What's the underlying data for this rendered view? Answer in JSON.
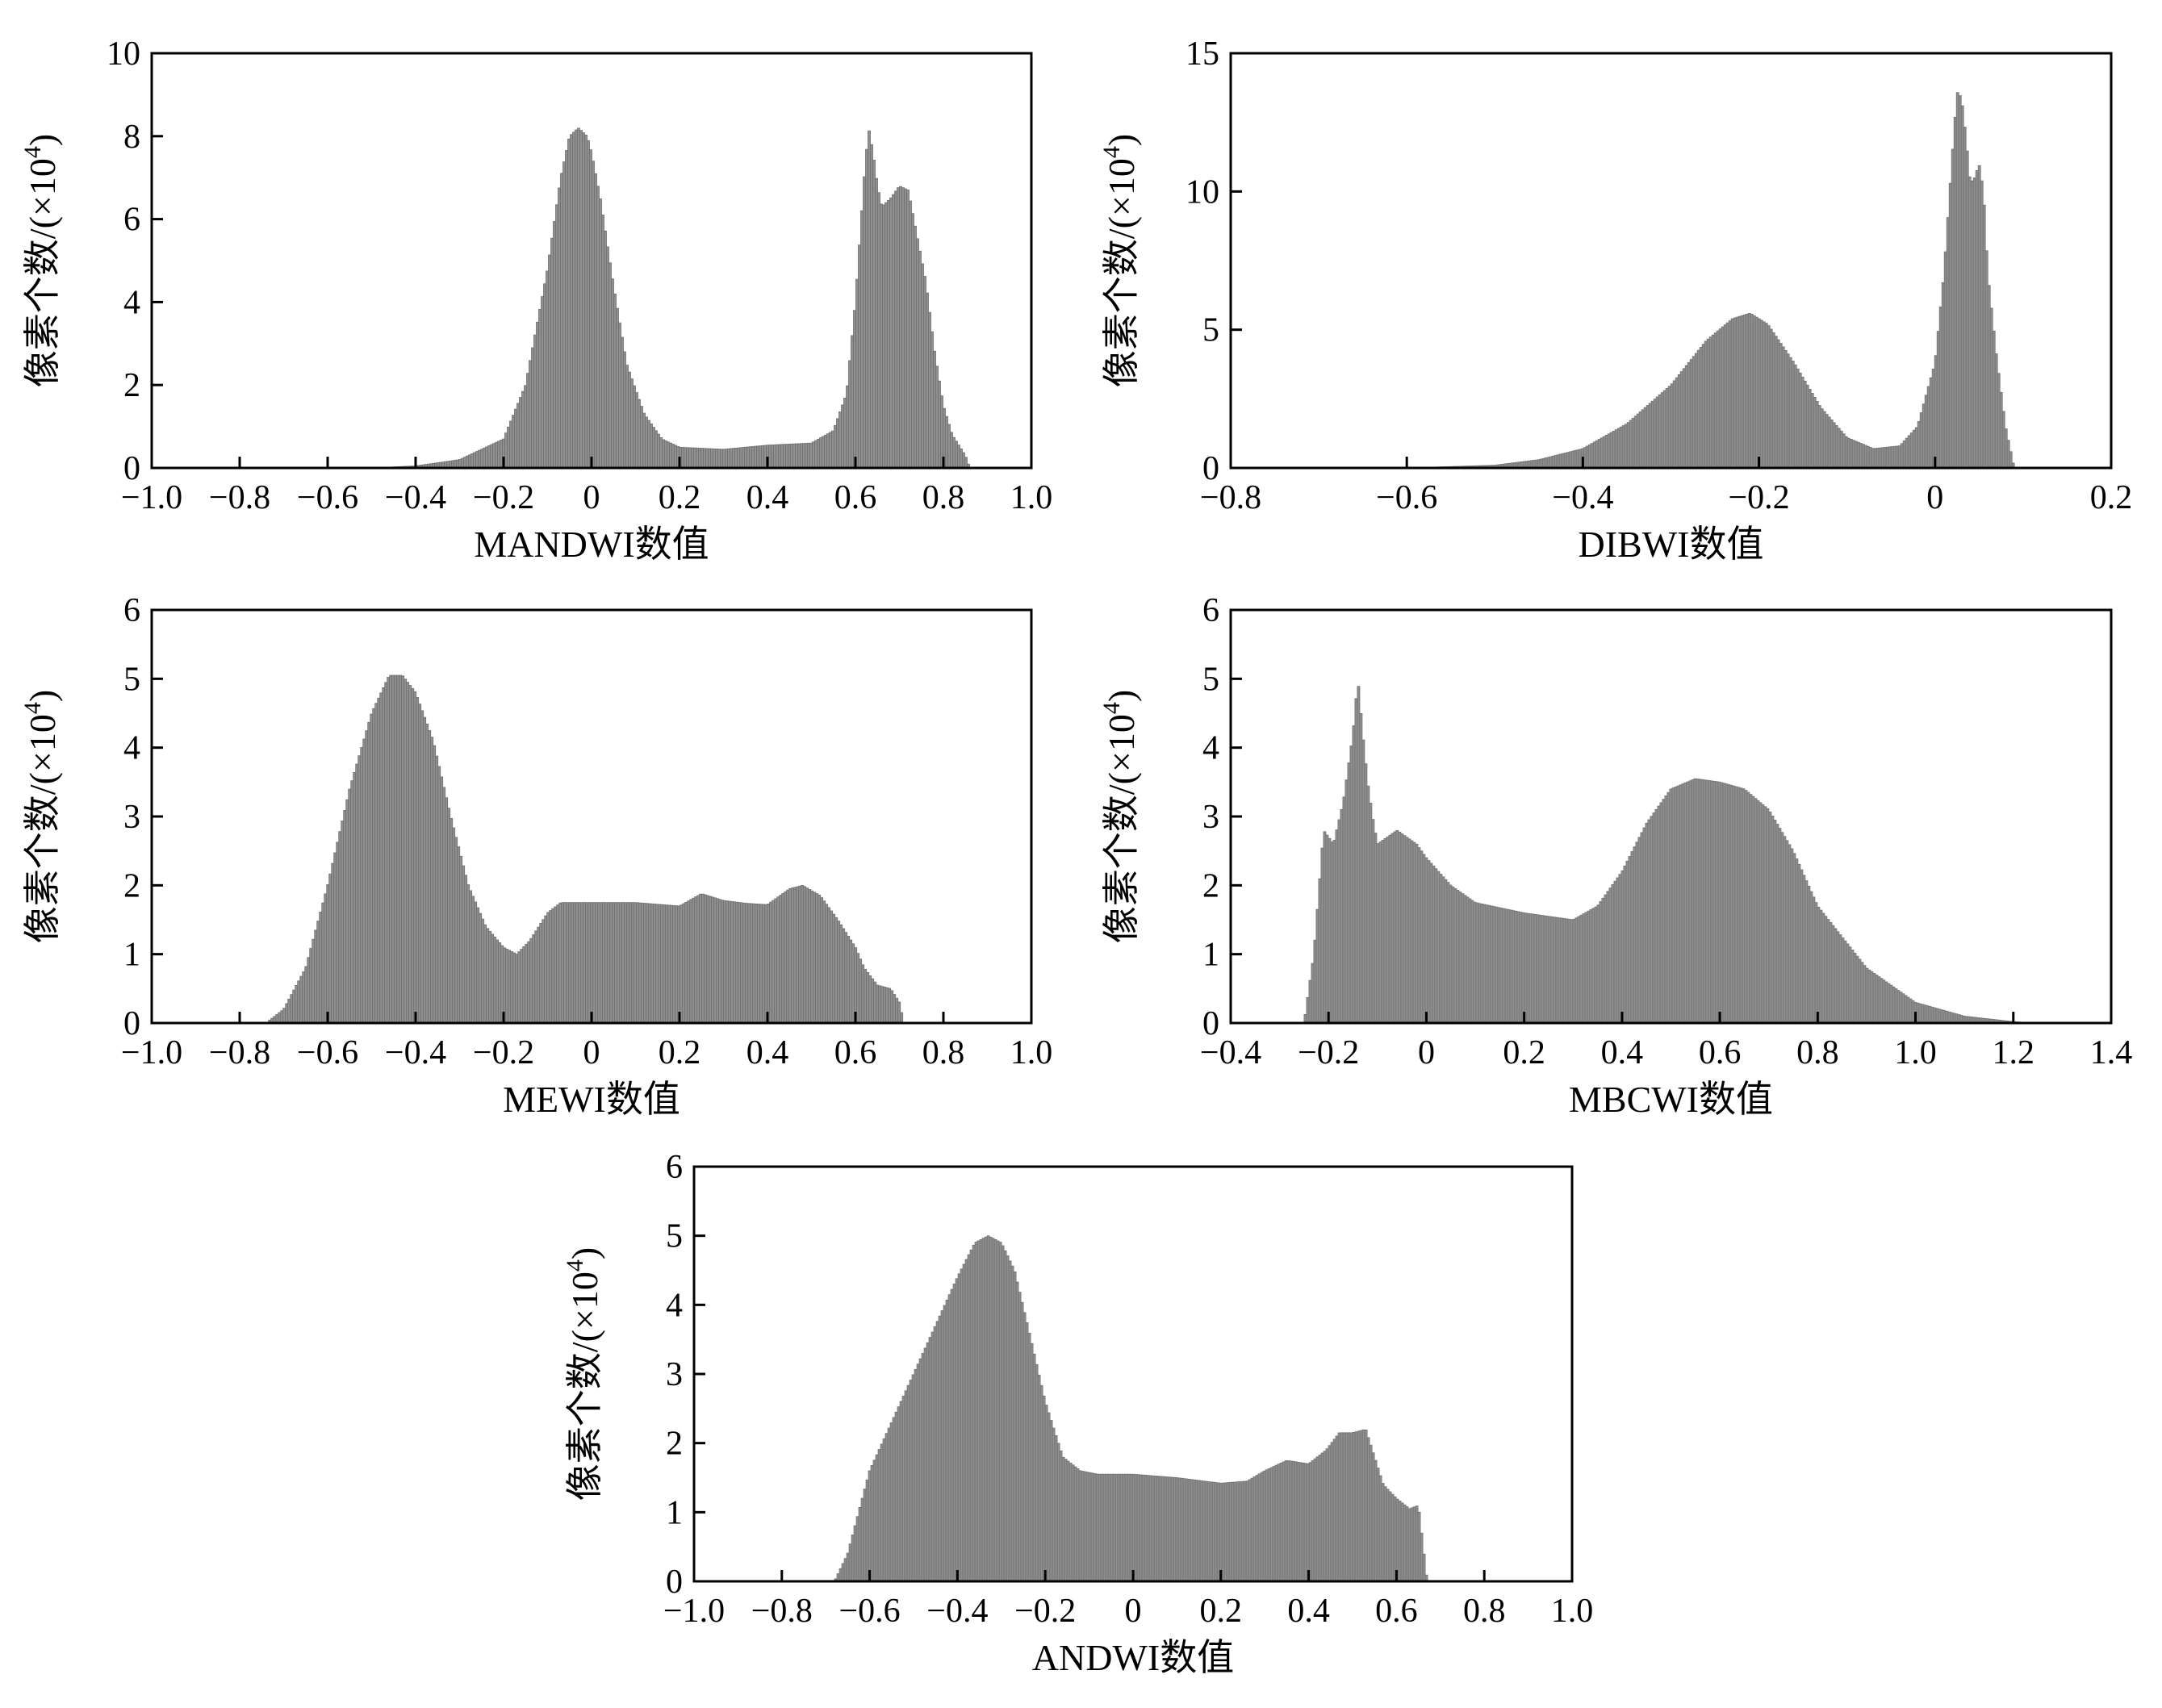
{
  "colors": {
    "bar": "#8f8f8f",
    "bar_edge": "#6f6f6f",
    "axis": "#000000"
  },
  "chart_data": [
    {
      "id": "mandwi",
      "type": "bar",
      "xlabel": "MANDWI数值",
      "ylabel": "像素个数/(×10",
      "ylabel_sup": "4",
      "ylabel_close": ")",
      "xlim": [
        -1.0,
        1.0
      ],
      "ylim": [
        0,
        10
      ],
      "xticks": [
        -1.0,
        -0.8,
        -0.6,
        -0.4,
        -0.2,
        0,
        0.2,
        0.4,
        0.6,
        0.8,
        1.0
      ],
      "xtick_labels": [
        "−1.0",
        "−0.8",
        "−0.6",
        "−0.4",
        "−0.2",
        "0",
        "0.2",
        "0.4",
        "0.6",
        "0.8",
        "1.0"
      ],
      "yticks": [
        0,
        2,
        4,
        6,
        8,
        10
      ],
      "ytick_labels": [
        "0",
        "2",
        "4",
        "6",
        "8",
        "10"
      ],
      "x": [
        -0.5,
        -0.4,
        -0.3,
        -0.2,
        -0.15,
        -0.1,
        -0.07,
        -0.05,
        -0.03,
        -0.01,
        0,
        0.02,
        0.05,
        0.08,
        0.12,
        0.16,
        0.2,
        0.3,
        0.4,
        0.5,
        0.55,
        0.58,
        0.6,
        0.62,
        0.63,
        0.64,
        0.65,
        0.66,
        0.68,
        0.7,
        0.72,
        0.74,
        0.76,
        0.78,
        0.8,
        0.82,
        0.85,
        0.86
      ],
      "values": [
        0.0,
        0.05,
        0.2,
        0.7,
        2.0,
        4.8,
        7.0,
        8.0,
        8.2,
        8.0,
        7.6,
        6.5,
        4.4,
        2.5,
        1.3,
        0.7,
        0.5,
        0.45,
        0.55,
        0.6,
        0.9,
        1.8,
        4.0,
        7.0,
        8.2,
        7.6,
        6.8,
        6.3,
        6.5,
        6.8,
        6.7,
        5.6,
        4.5,
        2.8,
        1.5,
        0.8,
        0.3,
        0.0
      ]
    },
    {
      "id": "dibwi",
      "type": "bar",
      "xlabel": "DIBWI数值",
      "ylabel": "像素个数/(×10",
      "ylabel_sup": "4",
      "ylabel_close": ")",
      "xlim": [
        -0.8,
        0.2
      ],
      "ylim": [
        0,
        15
      ],
      "xticks": [
        -0.8,
        -0.6,
        -0.4,
        -0.2,
        0,
        0.2
      ],
      "xtick_labels": [
        "−0.8",
        "−0.6",
        "−0.4",
        "−0.2",
        "0",
        "0.2"
      ],
      "yticks": [
        0,
        5,
        10,
        15
      ],
      "ytick_labels": [
        "0",
        "5",
        "10",
        "15"
      ],
      "x": [
        -0.6,
        -0.5,
        -0.45,
        -0.4,
        -0.35,
        -0.3,
        -0.26,
        -0.23,
        -0.21,
        -0.19,
        -0.16,
        -0.13,
        -0.1,
        -0.07,
        -0.04,
        -0.02,
        0,
        0.01,
        0.02,
        0.025,
        0.03,
        0.035,
        0.04,
        0.045,
        0.05,
        0.055,
        0.06,
        0.07,
        0.08,
        0.09
      ],
      "values": [
        0.0,
        0.1,
        0.3,
        0.7,
        1.6,
        3.0,
        4.6,
        5.4,
        5.6,
        5.2,
        3.8,
        2.2,
        1.1,
        0.7,
        0.8,
        1.5,
        3.8,
        7.0,
        11.5,
        13.6,
        13.4,
        12.0,
        10.3,
        10.5,
        11.0,
        10.0,
        7.0,
        4.0,
        1.5,
        0.0
      ]
    },
    {
      "id": "mewi",
      "type": "bar",
      "xlabel": "MEWI数值",
      "ylabel": "像素个数/(×10",
      "ylabel_sup": "4",
      "ylabel_close": ")",
      "xlim": [
        -1.0,
        1.0
      ],
      "ylim": [
        0,
        6
      ],
      "xticks": [
        -1.0,
        -0.8,
        -0.6,
        -0.4,
        -0.2,
        0,
        0.2,
        0.4,
        0.6,
        0.8,
        1.0
      ],
      "xtick_labels": [
        "−1.0",
        "−0.8",
        "−0.6",
        "−0.4",
        "−0.2",
        "0",
        "0.2",
        "0.4",
        "0.6",
        "0.8",
        "1.0"
      ],
      "yticks": [
        0,
        1,
        2,
        3,
        4,
        5,
        6
      ],
      "ytick_labels": [
        "0",
        "1",
        "2",
        "3",
        "4",
        "5",
        "6"
      ],
      "x": [
        -0.74,
        -0.7,
        -0.65,
        -0.6,
        -0.55,
        -0.5,
        -0.46,
        -0.43,
        -0.4,
        -0.36,
        -0.32,
        -0.28,
        -0.24,
        -0.2,
        -0.17,
        -0.14,
        -0.1,
        -0.07,
        -0.04,
        0,
        0.1,
        0.2,
        0.25,
        0.3,
        0.35,
        0.4,
        0.45,
        0.48,
        0.52,
        0.56,
        0.6,
        0.62,
        0.65,
        0.68,
        0.7,
        0.71
      ],
      "values": [
        0.0,
        0.2,
        0.8,
        2.0,
        3.4,
        4.5,
        5.05,
        5.05,
        4.8,
        4.1,
        3.0,
        2.0,
        1.4,
        1.1,
        1.0,
        1.2,
        1.6,
        1.75,
        1.75,
        1.75,
        1.75,
        1.7,
        1.88,
        1.78,
        1.74,
        1.72,
        1.95,
        2.0,
        1.85,
        1.5,
        1.1,
        0.8,
        0.55,
        0.5,
        0.3,
        0.0
      ]
    },
    {
      "id": "mbcwi",
      "type": "bar",
      "xlabel": "MBCWI数值",
      "ylabel": "像素个数/(×10",
      "ylabel_sup": "4",
      "ylabel_close": ")",
      "xlim": [
        -0.4,
        1.4
      ],
      "ylim": [
        0,
        6
      ],
      "xticks": [
        -0.4,
        -0.2,
        0,
        0.2,
        0.4,
        0.6,
        0.8,
        1.0,
        1.2,
        1.4
      ],
      "xtick_labels": [
        "−0.4",
        "−0.2",
        "0",
        "0.2",
        "0.4",
        "0.6",
        "0.8",
        "1.0",
        "1.2",
        "1.4"
      ],
      "yticks": [
        0,
        1,
        2,
        3,
        4,
        5,
        6
      ],
      "ytick_labels": [
        "0",
        "1",
        "2",
        "3",
        "4",
        "5",
        "6"
      ],
      "x": [
        -0.25,
        -0.23,
        -0.21,
        -0.19,
        -0.17,
        -0.15,
        -0.14,
        -0.13,
        -0.12,
        -0.11,
        -0.1,
        -0.08,
        -0.06,
        -0.04,
        -0.02,
        0,
        0.05,
        0.1,
        0.2,
        0.3,
        0.35,
        0.4,
        0.45,
        0.5,
        0.55,
        0.6,
        0.65,
        0.7,
        0.75,
        0.8,
        0.9,
        1.0,
        1.1,
        1.2,
        1.25
      ],
      "values": [
        0.0,
        1.0,
        2.8,
        2.6,
        3.2,
        4.2,
        5.0,
        4.2,
        3.5,
        3.0,
        2.6,
        2.7,
        2.8,
        2.7,
        2.6,
        2.4,
        2.0,
        1.75,
        1.6,
        1.5,
        1.7,
        2.2,
        2.9,
        3.4,
        3.55,
        3.5,
        3.4,
        3.1,
        2.5,
        1.7,
        0.8,
        0.3,
        0.1,
        0.02,
        0.0
      ]
    },
    {
      "id": "andwi",
      "type": "bar",
      "xlabel": "ANDWI数值",
      "ylabel": "像素个数/(×10",
      "ylabel_sup": "4",
      "ylabel_close": ")",
      "xlim": [
        -1.0,
        1.0
      ],
      "ylim": [
        0,
        6
      ],
      "xticks": [
        -1.0,
        -0.8,
        -0.6,
        -0.4,
        -0.2,
        0,
        0.2,
        0.4,
        0.6,
        0.8,
        1.0
      ],
      "xtick_labels": [
        "−1.0",
        "−0.8",
        "−0.6",
        "−0.4",
        "−0.2",
        "0",
        "0.2",
        "0.4",
        "0.6",
        "0.8",
        "1.0"
      ],
      "yticks": [
        0,
        1,
        2,
        3,
        4,
        5,
        6
      ],
      "ytick_labels": [
        "0",
        "1",
        "2",
        "3",
        "4",
        "5",
        "6"
      ],
      "x": [
        -0.68,
        -0.65,
        -0.6,
        -0.55,
        -0.5,
        -0.45,
        -0.4,
        -0.36,
        -0.33,
        -0.3,
        -0.27,
        -0.24,
        -0.2,
        -0.16,
        -0.12,
        -0.08,
        0,
        0.1,
        0.2,
        0.26,
        0.3,
        0.35,
        0.4,
        0.44,
        0.47,
        0.5,
        0.53,
        0.55,
        0.57,
        0.6,
        0.63,
        0.65,
        0.67
      ],
      "values": [
        0.0,
        0.4,
        1.6,
        2.3,
        3.0,
        3.7,
        4.4,
        4.9,
        5.0,
        4.9,
        4.5,
        3.7,
        2.6,
        1.8,
        1.6,
        1.55,
        1.55,
        1.5,
        1.42,
        1.45,
        1.6,
        1.75,
        1.7,
        1.9,
        2.15,
        2.15,
        2.2,
        1.8,
        1.4,
        1.2,
        1.05,
        1.1,
        0.0
      ]
    }
  ]
}
